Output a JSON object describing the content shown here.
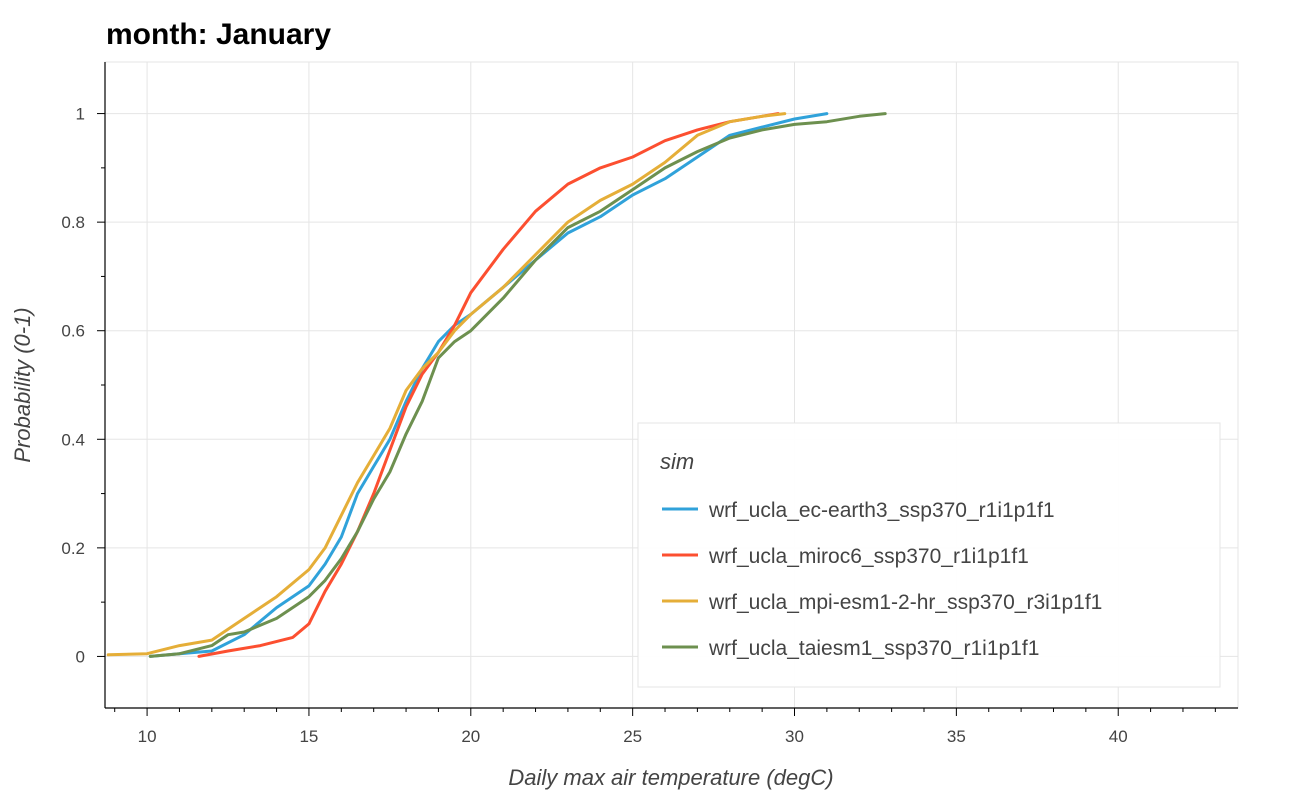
{
  "chart_data": {
    "type": "line",
    "title": "month: January",
    "xlabel": "Daily max air temperature (degC)",
    "ylabel": "Probability (0-1)",
    "xlim": [
      8.7,
      43.7
    ],
    "ylim": [
      -0.095,
      1.095
    ],
    "xticks": [
      10,
      15,
      20,
      25,
      30,
      35,
      40
    ],
    "yticks": [
      0,
      0.2,
      0.4,
      0.6,
      0.8,
      1
    ],
    "ytick_labels": [
      "0",
      "0.2",
      "0.4",
      "0.6",
      "0.8",
      "1"
    ],
    "grid": true,
    "legend_title": "sim",
    "legend_position": "bottom-right",
    "series": [
      {
        "name": "wrf_ucla_ec-earth3_ssp370_r1i1p1f1",
        "color": "#30a2da",
        "points": [
          [
            10.1,
            0.0
          ],
          [
            11.0,
            0.005
          ],
          [
            12.0,
            0.01
          ],
          [
            13.0,
            0.04
          ],
          [
            14.0,
            0.09
          ],
          [
            15.0,
            0.13
          ],
          [
            15.5,
            0.17
          ],
          [
            16.0,
            0.22
          ],
          [
            16.5,
            0.3
          ],
          [
            17.0,
            0.35
          ],
          [
            17.5,
            0.4
          ],
          [
            18.0,
            0.47
          ],
          [
            18.5,
            0.53
          ],
          [
            19.0,
            0.58
          ],
          [
            19.5,
            0.61
          ],
          [
            20.0,
            0.63
          ],
          [
            21.0,
            0.68
          ],
          [
            22.0,
            0.73
          ],
          [
            23.0,
            0.78
          ],
          [
            24.0,
            0.81
          ],
          [
            25.0,
            0.85
          ],
          [
            26.0,
            0.88
          ],
          [
            27.0,
            0.92
          ],
          [
            28.0,
            0.96
          ],
          [
            29.0,
            0.975
          ],
          [
            30.0,
            0.99
          ],
          [
            31.0,
            1.0
          ]
        ]
      },
      {
        "name": "wrf_ucla_miroc6_ssp370_r1i1p1f1",
        "color": "#fc4f30",
        "points": [
          [
            11.6,
            0.0
          ],
          [
            12.5,
            0.01
          ],
          [
            13.5,
            0.02
          ],
          [
            14.5,
            0.035
          ],
          [
            15.0,
            0.06
          ],
          [
            15.5,
            0.12
          ],
          [
            16.0,
            0.17
          ],
          [
            16.5,
            0.23
          ],
          [
            17.0,
            0.3
          ],
          [
            17.5,
            0.38
          ],
          [
            18.0,
            0.46
          ],
          [
            18.5,
            0.52
          ],
          [
            19.0,
            0.56
          ],
          [
            19.5,
            0.61
          ],
          [
            20.0,
            0.67
          ],
          [
            21.0,
            0.75
          ],
          [
            22.0,
            0.82
          ],
          [
            23.0,
            0.87
          ],
          [
            24.0,
            0.9
          ],
          [
            25.0,
            0.92
          ],
          [
            26.0,
            0.95
          ],
          [
            27.0,
            0.97
          ],
          [
            28.0,
            0.985
          ],
          [
            29.0,
            0.995
          ],
          [
            29.5,
            1.0
          ]
        ]
      },
      {
        "name": "wrf_ucla_mpi-esm1-2-hr_ssp370_r3i1p1f1",
        "color": "#e5ae38",
        "points": [
          [
            8.8,
            0.003
          ],
          [
            10.0,
            0.005
          ],
          [
            11.0,
            0.02
          ],
          [
            12.0,
            0.03
          ],
          [
            13.0,
            0.07
          ],
          [
            14.0,
            0.11
          ],
          [
            15.0,
            0.16
          ],
          [
            15.5,
            0.2
          ],
          [
            16.0,
            0.26
          ],
          [
            16.5,
            0.32
          ],
          [
            17.0,
            0.37
          ],
          [
            17.5,
            0.42
          ],
          [
            18.0,
            0.49
          ],
          [
            18.5,
            0.53
          ],
          [
            19.0,
            0.56
          ],
          [
            19.5,
            0.6
          ],
          [
            20.0,
            0.63
          ],
          [
            21.0,
            0.68
          ],
          [
            22.0,
            0.74
          ],
          [
            23.0,
            0.8
          ],
          [
            24.0,
            0.84
          ],
          [
            25.0,
            0.87
          ],
          [
            26.0,
            0.91
          ],
          [
            27.0,
            0.96
          ],
          [
            28.0,
            0.985
          ],
          [
            29.0,
            0.995
          ],
          [
            29.7,
            1.0
          ]
        ]
      },
      {
        "name": "wrf_ucla_taiesm1_ssp370_r1i1p1f1",
        "color": "#6d904f",
        "points": [
          [
            10.1,
            0.0
          ],
          [
            11.0,
            0.005
          ],
          [
            12.0,
            0.02
          ],
          [
            12.5,
            0.04
          ],
          [
            13.0,
            0.045
          ],
          [
            14.0,
            0.07
          ],
          [
            15.0,
            0.11
          ],
          [
            15.5,
            0.14
          ],
          [
            16.0,
            0.18
          ],
          [
            16.5,
            0.23
          ],
          [
            17.0,
            0.29
          ],
          [
            17.5,
            0.34
          ],
          [
            18.0,
            0.41
          ],
          [
            18.5,
            0.47
          ],
          [
            19.0,
            0.55
          ],
          [
            19.5,
            0.58
          ],
          [
            20.0,
            0.6
          ],
          [
            21.0,
            0.66
          ],
          [
            22.0,
            0.73
          ],
          [
            23.0,
            0.79
          ],
          [
            24.0,
            0.82
          ],
          [
            25.0,
            0.86
          ],
          [
            26.0,
            0.9
          ],
          [
            27.0,
            0.93
          ],
          [
            28.0,
            0.955
          ],
          [
            29.0,
            0.97
          ],
          [
            30.0,
            0.98
          ],
          [
            31.0,
            0.985
          ],
          [
            32.0,
            0.995
          ],
          [
            32.8,
            1.0
          ]
        ]
      }
    ]
  }
}
